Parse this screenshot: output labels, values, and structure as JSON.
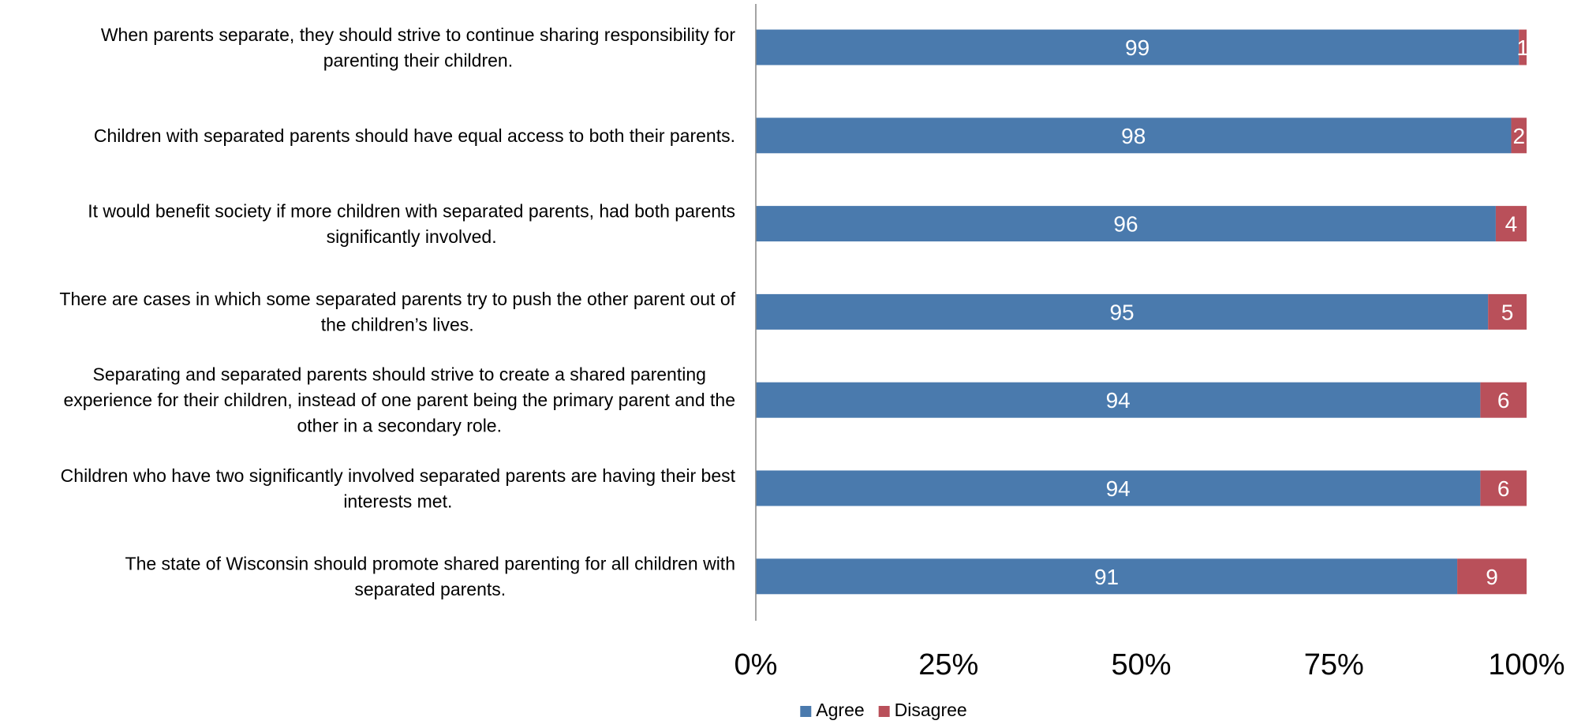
{
  "chart_data": {
    "type": "bar",
    "orientation": "horizontal",
    "stacked": "percent",
    "categories": [
      [
        "When parents separate, they should strive to continue sharing responsibility for",
        "parenting their children."
      ],
      [
        "Children with separated parents should have equal access to both their parents."
      ],
      [
        "It would benefit society if more children with separated parents, had both parents",
        "significantly involved."
      ],
      [
        "There are cases in which some separated parents try to push the other parent out of",
        "the children’s lives."
      ],
      [
        "Separating and separated parents should strive to create a shared parenting",
        "experience for their children, instead of one parent being the primary parent and the",
        "other in a secondary role."
      ],
      [
        "Children who have two significantly involved separated parents are having their best",
        "interests met."
      ],
      [
        "The state of Wisconsin should promote shared parenting for all children with",
        "separated parents."
      ]
    ],
    "series": [
      {
        "name": "Agree",
        "color": "#4a7aad",
        "values": [
          99,
          98,
          96,
          95,
          94,
          94,
          91
        ]
      },
      {
        "name": "Disagree",
        "color": "#b9505a",
        "values": [
          1,
          2,
          4,
          5,
          6,
          6,
          9
        ]
      }
    ],
    "xlim": [
      0,
      100
    ],
    "xticks": [
      "0%",
      "25%",
      "50%",
      "75%",
      "100%"
    ],
    "grid": false,
    "legend_position": "bottom",
    "data_labels": true
  }
}
